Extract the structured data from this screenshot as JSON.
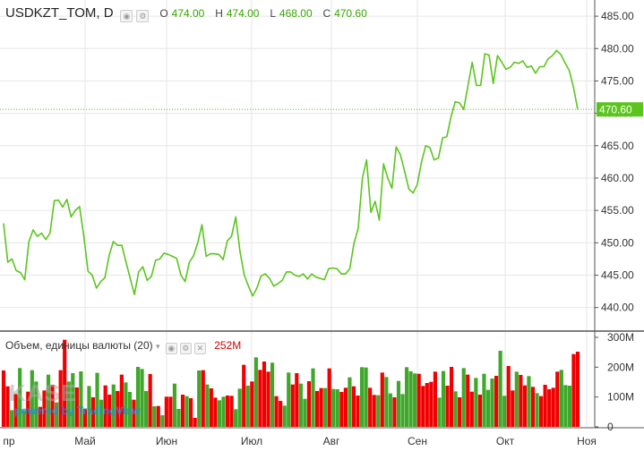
{
  "legend": {
    "symbol": "USDKZT_TOM, D",
    "o_label": "O",
    "o_value": "474.00",
    "h_label": "H",
    "h_value": "474.00",
    "l_label": "L",
    "l_value": "468.00",
    "c_label": "C",
    "c_value": "470.60"
  },
  "volume_legend": {
    "title": "Объем, единицы валюты (20)",
    "value": "252M"
  },
  "watermark": {
    "brand": "KASE",
    "powered": "powered by TradingView"
  },
  "colors": {
    "line": "#5bc51e",
    "up": "#3fa82a",
    "down": "#f00000",
    "last_price_bg": "#5bc51e"
  },
  "chart_data": [
    {
      "type": "line",
      "title": "USDKZT_TOM, D",
      "x_ticks": [
        "пр",
        "Май",
        "Июн",
        "Июл",
        "Авг",
        "Сен",
        "Окт",
        "Ноя"
      ],
      "y_ticks": [
        "440.00",
        "445.00",
        "450.00",
        "455.00",
        "460.00",
        "465.00",
        "470.00",
        "475.00",
        "480.00",
        "485.00"
      ],
      "ylim": [
        436.5,
        487.5
      ],
      "last_price_label": "470.60",
      "grid": true,
      "values": [
        453,
        447,
        447.5,
        445.7,
        445.4,
        444.3,
        450.2,
        452,
        451,
        451.5,
        450.5,
        451.5,
        456.5,
        456.6,
        455.5,
        456.7,
        454,
        455,
        455.6,
        451,
        445.6,
        445,
        443,
        444,
        444.6,
        448,
        450.2,
        449.6,
        449.6,
        447,
        444.5,
        442,
        445.5,
        446.3,
        444.2,
        444.8,
        447.3,
        447.5,
        448.4,
        448.2,
        447.9,
        447.6,
        445,
        444,
        447,
        448,
        450,
        452.8,
        447.9,
        448.3,
        448.3,
        448.2,
        447.4,
        450.3,
        451,
        454,
        448.7,
        445,
        443.3,
        441.8,
        443,
        444.9,
        445.2,
        444.5,
        443.3,
        443.7,
        444.2,
        445.5,
        445.5,
        445,
        444.8,
        445.2,
        444.4,
        445.2,
        444.7,
        444.5,
        444.3,
        446,
        446.1,
        446,
        445.2,
        445.2,
        446,
        449.9,
        452.2,
        460,
        462.8,
        454.7,
        456.4,
        453.5,
        462.2,
        460,
        458.4,
        464.8,
        463.6,
        461,
        458.3,
        457.7,
        459,
        462.5,
        465,
        464.7,
        462.8,
        463.1,
        466.2,
        466.4,
        469.5,
        471.8,
        471.6,
        470.6,
        474.3,
        477.9,
        474.3,
        474.3,
        479.2,
        479,
        474.6,
        478.9,
        477.9,
        476.8,
        477.1,
        477.9,
        477.7,
        478.1,
        477.1,
        477.3,
        476.2,
        477.2,
        477.2,
        478.4,
        478.9,
        479.7,
        479.1,
        477.8,
        476.6,
        474,
        470.6
      ]
    },
    {
      "type": "bar",
      "title": "Объем, единицы валюты (20)",
      "y_ticks": [
        "0",
        "100M",
        "200M",
        "300M"
      ],
      "ylim": [
        0,
        300
      ],
      "unit": "M",
      "values": [
        189,
        136,
        56,
        110,
        197,
        56,
        118,
        190,
        152,
        67,
        122,
        175,
        141,
        82,
        190,
        292,
        152,
        180,
        132,
        186,
        61,
        137,
        99,
        181,
        91,
        139,
        108,
        142,
        120,
        175,
        149,
        117,
        91,
        201,
        194,
        120,
        177,
        69,
        70,
        39,
        101,
        101,
        145,
        60,
        108,
        103,
        96,
        30,
        189,
        190,
        142,
        129,
        98,
        89,
        101,
        105,
        104,
        59,
        128,
        208,
        138,
        152,
        233,
        191,
        219,
        185,
        215,
        103,
        87,
        71,
        182,
        142,
        180,
        145,
        94,
        153,
        196,
        120,
        130,
        130,
        196,
        127,
        126,
        117,
        131,
        166,
        136,
        105,
        200,
        199,
        131,
        107,
        106,
        182,
        167,
        112,
        99,
        154,
        110,
        200,
        186,
        179,
        178,
        137,
        147,
        151,
        185,
        98,
        187,
        138,
        201,
        119,
        99,
        197,
        175,
        118,
        164,
        108,
        178,
        124,
        162,
        171,
        255,
        104,
        204,
        122,
        185,
        174,
        139,
        170,
        134,
        113,
        103,
        141,
        126,
        131,
        185,
        191,
        140,
        138,
        244,
        252
      ],
      "directions": [
        "d",
        "d",
        "u",
        "d",
        "u",
        "u",
        "d",
        "u",
        "u",
        "d",
        "d",
        "u",
        "d",
        "u",
        "d",
        "d",
        "u",
        "u",
        "d",
        "u",
        "d",
        "u",
        "d",
        "u",
        "u",
        "d",
        "d",
        "u",
        "d",
        "d",
        "u",
        "u",
        "d",
        "u",
        "u",
        "u",
        "d",
        "u",
        "d",
        "u",
        "d",
        "d",
        "u",
        "u",
        "d",
        "u",
        "d",
        "d",
        "u",
        "d",
        "u",
        "d",
        "d",
        "u",
        "u",
        "d",
        "d",
        "u",
        "u",
        "d",
        "u",
        "d",
        "u",
        "d",
        "d",
        "d",
        "u",
        "d",
        "d",
        "u",
        "u",
        "d",
        "d",
        "u",
        "u",
        "d",
        "u",
        "d",
        "d",
        "u",
        "d",
        "u",
        "u",
        "d",
        "d",
        "u",
        "d",
        "d",
        "u",
        "u",
        "d",
        "d",
        "u",
        "d",
        "u",
        "u",
        "d",
        "u",
        "u",
        "u",
        "u",
        "u",
        "d",
        "d",
        "d",
        "d",
        "d",
        "u",
        "u",
        "d",
        "d",
        "u",
        "d",
        "u",
        "d",
        "d",
        "u",
        "d",
        "u",
        "u",
        "u",
        "d",
        "u",
        "u",
        "d",
        "d",
        "u",
        "d",
        "d",
        "u",
        "d",
        "u",
        "d",
        "d",
        "d",
        "d",
        "d",
        "u",
        "u",
        "u",
        "d",
        "d"
      ]
    }
  ]
}
